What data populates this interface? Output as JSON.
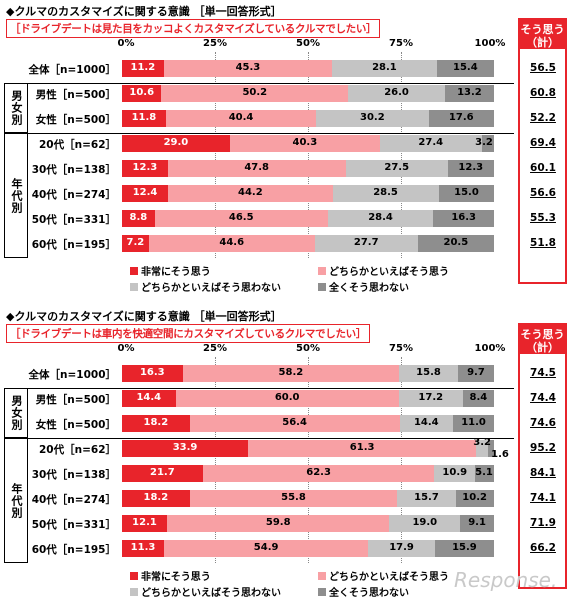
{
  "colors": {
    "strong": "#e8242b",
    "somewhat": "#f8a0a4",
    "somewhat_not": "#c4c4c4",
    "not_at_all": "#8e8e8e",
    "accent": "#e8242b"
  },
  "axis_ticks": [
    "0%",
    "25%",
    "50%",
    "75%",
    "100%"
  ],
  "legend": {
    "strong": "非常にそう思う",
    "somewhat": "どちらかといえばそう思う",
    "somewhat_not": "どちらかといえばそう思わない",
    "not_at_all": "全くそう思わない"
  },
  "groups": {
    "gender": "男女別",
    "age": "年代別"
  },
  "sum_header": {
    "line1": "そう思う",
    "line2": "（計）"
  },
  "watermark": "Response.",
  "chart_data": [
    {
      "type": "bar",
      "stacked": true,
      "orientation": "horizontal",
      "title": "◆クルマのカスタマイズに関する意識 ［単一回答形式］",
      "subtitle": "［ドライブデートは見た目をカッコよくカスタマイズしているクルマでしたい］",
      "categories": [
        "全体［n=1000］",
        "男性［n=500］",
        "女性［n=500］",
        "20代［n=62］",
        "30代［n=138］",
        "40代［n=274］",
        "50代［n=331］",
        "60代［n=195］"
      ],
      "series": [
        {
          "name": "非常にそう思う",
          "values": [
            11.2,
            10.6,
            11.8,
            29.0,
            12.3,
            12.4,
            8.8,
            7.2
          ]
        },
        {
          "name": "どちらかといえばそう思う",
          "values": [
            45.3,
            50.2,
            40.4,
            40.3,
            47.8,
            44.2,
            46.5,
            44.6
          ]
        },
        {
          "name": "どちらかといえばそう思わない",
          "values": [
            28.1,
            26.0,
            30.2,
            27.4,
            27.5,
            28.5,
            28.4,
            27.7
          ]
        },
        {
          "name": "全くそう思わない",
          "values": [
            15.4,
            13.2,
            17.6,
            3.2,
            12.3,
            15.0,
            16.3,
            20.5
          ]
        }
      ],
      "sum_label": "そう思う（計）",
      "sum_values": [
        "56.5",
        "60.8",
        "52.2",
        "69.4",
        "60.1",
        "56.6",
        "55.3",
        "51.8"
      ],
      "xlim": [
        0,
        100
      ]
    },
    {
      "type": "bar",
      "stacked": true,
      "orientation": "horizontal",
      "title": "◆クルマのカスタマイズに関する意識 ［単一回答形式］",
      "subtitle": "［ドライブデートは車内を快適空間にカスタマイズしているクルマでしたい］",
      "categories": [
        "全体［n=1000］",
        "男性［n=500］",
        "女性［n=500］",
        "20代［n=62］",
        "30代［n=138］",
        "40代［n=274］",
        "50代［n=331］",
        "60代［n=195］"
      ],
      "series": [
        {
          "name": "非常にそう思う",
          "values": [
            16.3,
            14.4,
            18.2,
            33.9,
            21.7,
            18.2,
            12.1,
            11.3
          ]
        },
        {
          "name": "どちらかといえばそう思う",
          "values": [
            58.2,
            60.0,
            56.4,
            61.3,
            62.3,
            55.8,
            59.8,
            54.9
          ]
        },
        {
          "name": "どちらかといえばそう思わない",
          "values": [
            15.8,
            17.2,
            14.4,
            3.2,
            10.9,
            15.7,
            19.0,
            17.9
          ]
        },
        {
          "name": "全くそう思わない",
          "values": [
            9.7,
            8.4,
            11.0,
            1.6,
            5.1,
            10.2,
            9.1,
            15.9
          ]
        }
      ],
      "sum_label": "そう思う（計）",
      "sum_values": [
        "74.5",
        "74.4",
        "74.6",
        "95.2",
        "84.1",
        "74.1",
        "71.9",
        "66.2"
      ],
      "xlim": [
        0,
        100
      ]
    }
  ]
}
